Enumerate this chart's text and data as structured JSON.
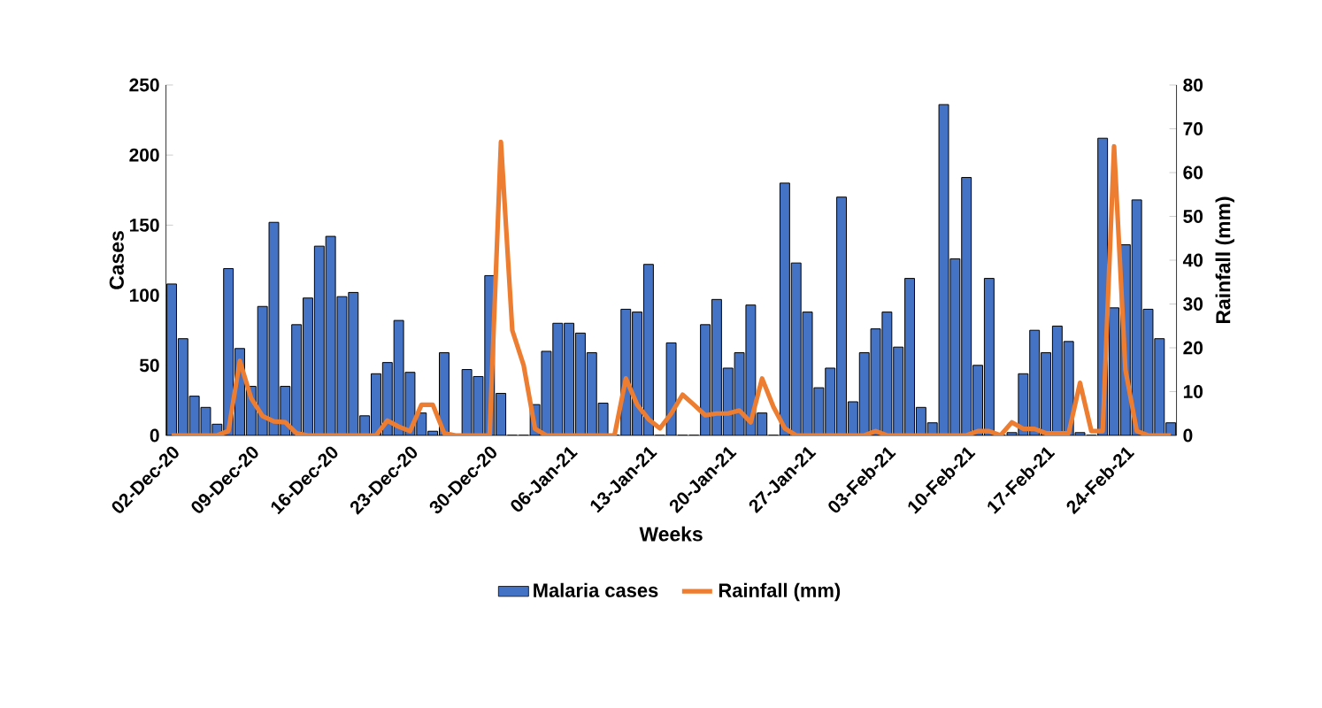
{
  "chart_data": {
    "type": "bar",
    "xlabel": "Weeks",
    "ylabel": "Cases",
    "y2label": "Rainfall (mm)",
    "categories": [
      "02-Dec-20",
      null,
      null,
      null,
      null,
      null,
      null,
      "09-Dec-20",
      null,
      null,
      null,
      null,
      null,
      null,
      "16-Dec-20",
      null,
      null,
      null,
      null,
      null,
      null,
      "23-Dec-20",
      null,
      null,
      null,
      null,
      null,
      null,
      "30-Dec-20",
      null,
      null,
      null,
      null,
      null,
      null,
      "06-Jan-21",
      null,
      null,
      null,
      null,
      null,
      null,
      "13-Jan-21",
      null,
      null,
      null,
      null,
      null,
      null,
      "20-Jan-21",
      null,
      null,
      null,
      null,
      null,
      null,
      "27-Jan-21",
      null,
      null,
      null,
      null,
      null,
      null,
      "03-Feb-21",
      null,
      null,
      null,
      null,
      null,
      null,
      "10-Feb-21",
      null,
      null,
      null,
      null,
      null,
      null,
      "17-Feb-21",
      null,
      null,
      null,
      null,
      null,
      null,
      "24-Feb-21",
      null,
      null,
      null,
      null
    ],
    "series": [
      {
        "name": "Malaria cases",
        "color": "#4472c4",
        "values": [
          108,
          69,
          28,
          20,
          8,
          119,
          62,
          35,
          92,
          152,
          35,
          79,
          98,
          135,
          142,
          99,
          102,
          14,
          44,
          52,
          82,
          45,
          16,
          3,
          59,
          0,
          47,
          42,
          114,
          30,
          0,
          0,
          22,
          60,
          80,
          80,
          73,
          59,
          23,
          0,
          90,
          88,
          122,
          0,
          66,
          0,
          0,
          79,
          97,
          48,
          59,
          93,
          16,
          0,
          180,
          123,
          88,
          34,
          48,
          170,
          24,
          59,
          76,
          88,
          63,
          112,
          20,
          9,
          236,
          126,
          184,
          50,
          112,
          0,
          2,
          44,
          75,
          59,
          78,
          67,
          2,
          0,
          212,
          91,
          136,
          168,
          90,
          69,
          9
        ]
      },
      {
        "name": "Rainfall (mm)",
        "type": "line",
        "axis": "y2",
        "color": "#ed7d31",
        "values": [
          0,
          0,
          0,
          0,
          0,
          1,
          17,
          8.5,
          4.4,
          3.2,
          3,
          0.5,
          0,
          0,
          0,
          0,
          0,
          0,
          0,
          3.4,
          2,
          1,
          7,
          7,
          0.5,
          0,
          0,
          0,
          0,
          67,
          24,
          16,
          1.5,
          0,
          0,
          0,
          0,
          0,
          0,
          0,
          13,
          7,
          3.7,
          1.6,
          5,
          9.3,
          7,
          4.6,
          5,
          5,
          5.7,
          3,
          13,
          6.5,
          1.6,
          0,
          0,
          0,
          0,
          0,
          0,
          0,
          1,
          0,
          0,
          0,
          0,
          0,
          0,
          0,
          0,
          1,
          1,
          0,
          3,
          1.5,
          1.5,
          0.5,
          0.5,
          0.5,
          12,
          1,
          1,
          66,
          15,
          1,
          0,
          0,
          0
        ]
      }
    ],
    "ylim": [
      0,
      250
    ],
    "yticks": [
      0,
      50,
      100,
      150,
      200,
      250
    ],
    "y2lim": [
      0,
      80
    ],
    "y2ticks": [
      0,
      10,
      20,
      30,
      40,
      50,
      60,
      70,
      80
    ],
    "legend": "bottom",
    "grid": false,
    "marker": "none",
    "line_style": "solid"
  }
}
